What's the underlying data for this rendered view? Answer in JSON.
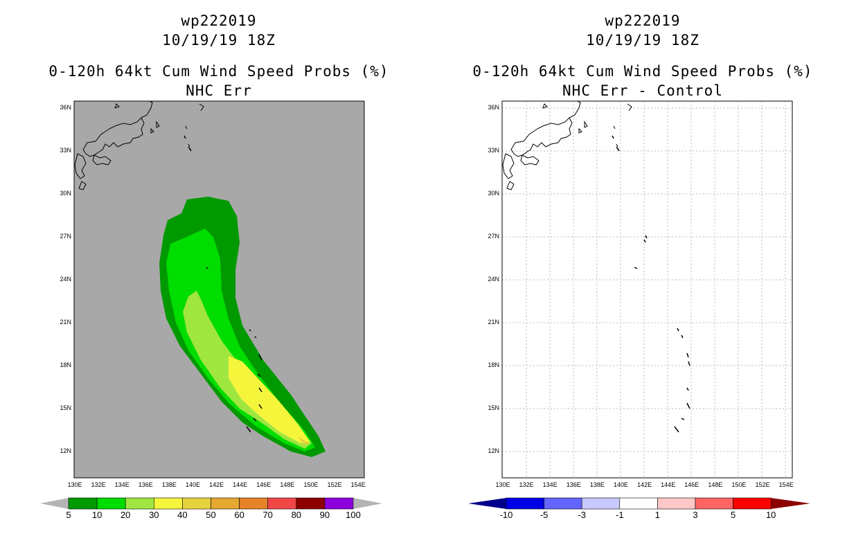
{
  "left_panel": {
    "storm_id": "wp222019",
    "datetime": "10/19/19 18Z",
    "title": "0-120h 64kt Cum Wind Speed Probs (%)",
    "subtitle": "NHC Err",
    "colorbar": {
      "labels": [
        "5",
        "10",
        "20",
        "30",
        "40",
        "50",
        "60",
        "70",
        "80",
        "90",
        "100"
      ],
      "colors": [
        "#009900",
        "#00dd00",
        "#a0e640",
        "#f5f53c",
        "#e6d23c",
        "#e6a832",
        "#e68228",
        "#f04646",
        "#8c0000",
        "#8c00dc"
      ],
      "end_arrow_color": "#b4b4b4"
    }
  },
  "right_panel": {
    "storm_id": "wp222019",
    "datetime": "10/19/19 18Z",
    "title": "0-120h 64kt Cum Wind Speed Probs (%)",
    "subtitle": "NHC Err - Control",
    "colorbar": {
      "labels": [
        "-10",
        "-5",
        "-3",
        "-1",
        "1",
        "3",
        "5",
        "10"
      ],
      "colors": [
        "#0000e6",
        "#6464ff",
        "#c8c8ff",
        "#ffffff",
        "#ffc8c8",
        "#ff6464",
        "#ff0000"
      ],
      "left_arrow_color": "#00008c",
      "right_arrow_color": "#8c0000"
    }
  },
  "axes": {
    "lon_labels": [
      "130E",
      "132E",
      "134E",
      "136E",
      "138E",
      "140E",
      "142E",
      "144E",
      "146E",
      "148E",
      "150E",
      "152E",
      "154E"
    ],
    "lat_labels": [
      "36N",
      "33N",
      "30N",
      "27N",
      "24N",
      "21N",
      "18N",
      "15N",
      "12N"
    ]
  },
  "colors": {
    "left_background": "#a8a8a8",
    "grid_right": "#b8b8b8",
    "coast": "#000000"
  }
}
